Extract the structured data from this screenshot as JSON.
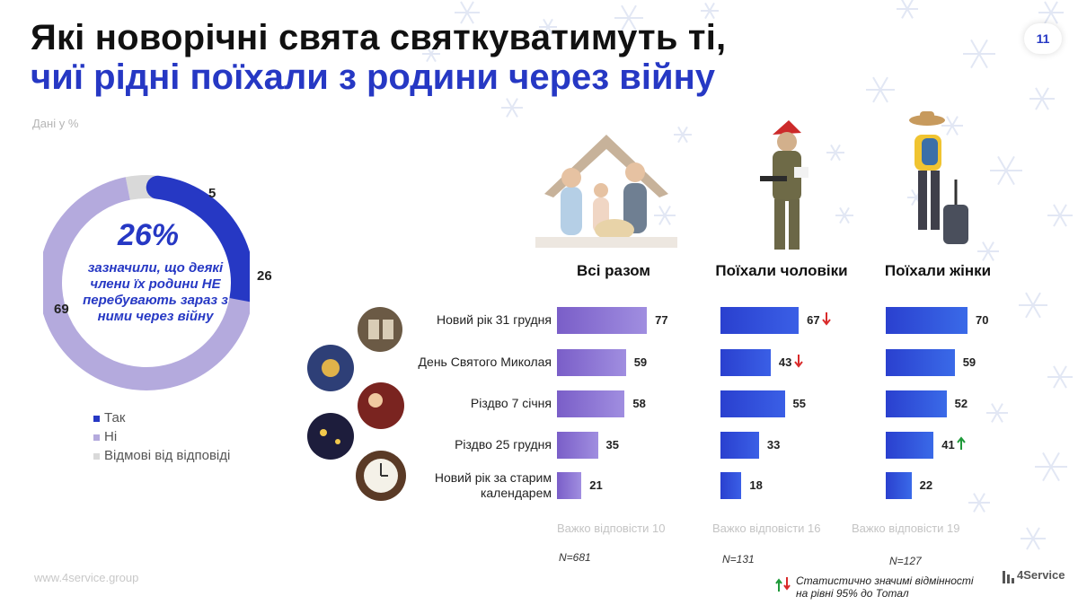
{
  "page": {
    "title_line1": "Які новорічні свята святкуватимуть ті,",
    "title_line2": "чиї рідні поїхали з родини через війну",
    "page_number": "11",
    "subnote": "Дані у %",
    "website": "www.4service.group",
    "brand": "4Service",
    "stat_note_line1": "Статистично значимі відмінності",
    "stat_note_line2": "на  рівні  95% до Тотал",
    "colors": {
      "accent": "#2638c4",
      "purple": "#7b5cc9",
      "lightpurple": "#b4aadd",
      "grey": "#d9d9d9",
      "down": "#d92a2a",
      "up": "#1f9a3a"
    }
  },
  "chart_data": [
    {
      "type": "pie",
      "values": [
        26,
        69,
        5
      ],
      "value_labels": [
        "26",
        "69",
        "5"
      ],
      "legend": [
        "Так",
        "Ні",
        "Відмові від відповіді"
      ],
      "legend_placement": "bottom-left",
      "center_value": "26%",
      "center_text": "зазначили, що деякі члени їх родини НЕ перебувають зараз з ними через війну"
    },
    {
      "type": "bar",
      "orientation": "horizontal",
      "categories": [
        "Новий рік 31 грудня",
        "День Святого Миколая",
        "Різдво 7 січня",
        "Різдво 25 грудня",
        "Новий рік за старим календарем"
      ],
      "series": [
        {
          "name": "Всі разом",
          "values": [
            77,
            59,
            58,
            35,
            21
          ],
          "value_labels": [
            "77",
            "59",
            "58",
            "35",
            "21"
          ],
          "note": "Важко відповісти 10",
          "n": "N=681",
          "arrows": [
            "",
            "",
            "",
            "",
            ""
          ]
        },
        {
          "name": "Поїхали чоловіки",
          "values": [
            67,
            43,
            55,
            33,
            18
          ],
          "value_labels": [
            "67",
            "43",
            "55",
            "33",
            "18"
          ],
          "note": "Важко відповісти 16",
          "n": "N=131",
          "arrows": [
            "down",
            "down",
            "",
            "",
            ""
          ]
        },
        {
          "name": "Поїхали жінки",
          "values": [
            70,
            59,
            52,
            41,
            22
          ],
          "value_labels": [
            "70",
            "59",
            "52",
            "41",
            "22"
          ],
          "note": "Важко відповісти 19",
          "n": "N=127",
          "arrows": [
            "",
            "",
            "",
            "up",
            ""
          ]
        }
      ]
    }
  ]
}
